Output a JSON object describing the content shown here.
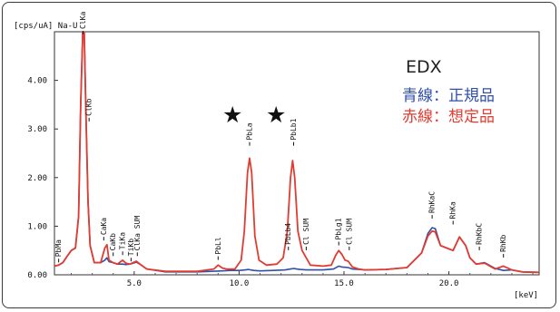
{
  "chart_data": {
    "type": "line",
    "title": "EDX",
    "y_unit_label": "[cps/uA]",
    "range_label": "Na-U",
    "x_unit_label": "[keV]",
    "xlim": [
      1.2,
      24.3
    ],
    "ylim": [
      0,
      5.0
    ],
    "x_ticks": [
      5.0,
      10.0,
      15.0,
      20.0
    ],
    "x_tick_labels": [
      "5.0",
      "10.0",
      "15.0",
      "20.0"
    ],
    "y_ticks": [
      0,
      1,
      2,
      3,
      4
    ],
    "y_tick_labels": [
      "0.00",
      "1.00",
      "2.00",
      "3.00",
      "4.00"
    ],
    "grid": false,
    "legend": [
      {
        "text": "青線：正規品",
        "color": "#2f4fa8"
      },
      {
        "text": "赤線：想定品",
        "color": "#e23b30"
      }
    ],
    "colors": {
      "red": "#e23b30",
      "blue": "#2f4fa8"
    },
    "series": [
      {
        "name": "青線：正規品",
        "color": "#2f4fa8",
        "x": [
          1.2,
          1.4,
          1.6,
          1.8,
          2.0,
          2.2,
          2.35,
          2.45,
          2.55,
          2.62,
          2.7,
          2.8,
          2.9,
          3.1,
          3.4,
          3.6,
          3.7,
          3.8,
          4.0,
          4.2,
          4.45,
          4.6,
          4.8,
          5.1,
          5.3,
          5.6,
          6.5,
          8.0,
          9.2,
          9.6,
          10.0,
          10.3,
          10.45,
          10.55,
          10.7,
          11.0,
          11.6,
          12.2,
          12.45,
          12.6,
          12.75,
          12.9,
          13.2,
          14.0,
          14.5,
          14.75,
          14.9,
          15.2,
          15.4,
          16.0,
          17.0,
          18.0,
          18.7,
          19.0,
          19.2,
          19.35,
          19.6,
          19.9,
          20.2,
          20.5,
          20.8,
          21.0,
          21.3,
          21.7,
          22.2,
          22.6,
          23.0,
          23.5,
          24.3
        ],
        "y": [
          0.18,
          0.2,
          0.25,
          0.38,
          0.5,
          0.55,
          1.2,
          3.5,
          5.0,
          5.0,
          3.3,
          1.5,
          0.6,
          0.25,
          0.25,
          0.3,
          0.35,
          0.27,
          0.25,
          0.22,
          0.22,
          0.21,
          0.22,
          0.26,
          0.21,
          0.12,
          0.06,
          0.06,
          0.08,
          0.09,
          0.09,
          0.1,
          0.11,
          0.1,
          0.09,
          0.08,
          0.09,
          0.1,
          0.12,
          0.13,
          0.12,
          0.11,
          0.1,
          0.1,
          0.12,
          0.18,
          0.16,
          0.15,
          0.12,
          0.1,
          0.11,
          0.15,
          0.45,
          0.85,
          0.97,
          0.95,
          0.6,
          0.55,
          0.5,
          0.78,
          0.6,
          0.35,
          0.22,
          0.25,
          0.13,
          0.09,
          0.1,
          0.06,
          0.05
        ]
      },
      {
        "name": "赤線：想定品",
        "color": "#e23b30",
        "x": [
          1.2,
          1.4,
          1.6,
          1.8,
          2.0,
          2.2,
          2.35,
          2.45,
          2.55,
          2.62,
          2.7,
          2.8,
          2.9,
          3.1,
          3.4,
          3.6,
          3.7,
          3.8,
          4.0,
          4.2,
          4.45,
          4.6,
          4.8,
          5.1,
          5.3,
          5.6,
          6.5,
          8.0,
          8.8,
          9.0,
          9.2,
          9.4,
          9.8,
          10.1,
          10.25,
          10.4,
          10.5,
          10.6,
          10.75,
          10.95,
          11.3,
          11.8,
          12.1,
          12.3,
          12.45,
          12.55,
          12.65,
          12.8,
          13.0,
          13.4,
          14.0,
          14.4,
          14.6,
          14.75,
          14.9,
          15.05,
          15.2,
          15.4,
          15.7,
          16.0,
          17.0,
          18.0,
          18.7,
          19.0,
          19.2,
          19.35,
          19.6,
          19.9,
          20.2,
          20.5,
          20.8,
          21.0,
          21.3,
          21.7,
          22.2,
          22.6,
          23.0,
          23.5,
          24.3
        ],
        "y": [
          0.18,
          0.2,
          0.25,
          0.38,
          0.5,
          0.55,
          1.2,
          3.5,
          5.0,
          5.0,
          3.3,
          1.5,
          0.6,
          0.25,
          0.25,
          0.55,
          0.62,
          0.3,
          0.25,
          0.22,
          0.3,
          0.24,
          0.22,
          0.28,
          0.21,
          0.12,
          0.07,
          0.07,
          0.12,
          0.2,
          0.14,
          0.12,
          0.12,
          0.3,
          0.9,
          2.1,
          2.4,
          2.1,
          0.8,
          0.3,
          0.2,
          0.22,
          0.35,
          0.9,
          2.0,
          2.35,
          2.0,
          0.9,
          0.5,
          0.2,
          0.18,
          0.2,
          0.4,
          0.5,
          0.42,
          0.3,
          0.28,
          0.16,
          0.12,
          0.1,
          0.11,
          0.15,
          0.45,
          0.8,
          0.9,
          0.88,
          0.6,
          0.55,
          0.5,
          0.78,
          0.6,
          0.35,
          0.22,
          0.24,
          0.12,
          0.18,
          0.1,
          0.06,
          0.05
        ]
      }
    ],
    "peak_labels": [
      {
        "text": "PbMa",
        "x": 1.4,
        "y": 0.2
      },
      {
        "text": "ClKa",
        "x": 2.56,
        "y": 5.0
      },
      {
        "text": "ClKb",
        "x": 2.85,
        "y": 3.1
      },
      {
        "text": "CaKa",
        "x": 3.55,
        "y": 0.65
      },
      {
        "text": "CaKb",
        "x": 4.0,
        "y": 0.33
      },
      {
        "text": "TiKa",
        "x": 4.45,
        "y": 0.35
      },
      {
        "text": "TiKb",
        "x": 4.85,
        "y": 0.22
      },
      {
        "text": "ClKa SUM",
        "x": 5.15,
        "y": 0.33
      },
      {
        "text": "PbLl",
        "x": 9.0,
        "y": 0.25
      },
      {
        "text": "PbLa",
        "x": 10.5,
        "y": 2.6
      },
      {
        "text": "PbLb1",
        "x": 12.6,
        "y": 2.6
      },
      {
        "text": "PbLb4",
        "x": 12.35,
        "y": 0.45
      },
      {
        "text": "Cl SUM",
        "x": 13.2,
        "y": 0.45
      },
      {
        "text": "PbLg1",
        "x": 14.75,
        "y": 0.55
      },
      {
        "text": "Cl SUM",
        "x": 15.25,
        "y": 0.45
      },
      {
        "text": "RhKaC",
        "x": 19.2,
        "y": 1.1
      },
      {
        "text": "RhKa",
        "x": 20.2,
        "y": 0.98
      },
      {
        "text": "RhKbC",
        "x": 21.45,
        "y": 0.45
      },
      {
        "text": "RhKb",
        "x": 22.6,
        "y": 0.3
      }
    ],
    "annotations": [
      "★",
      "★"
    ]
  }
}
